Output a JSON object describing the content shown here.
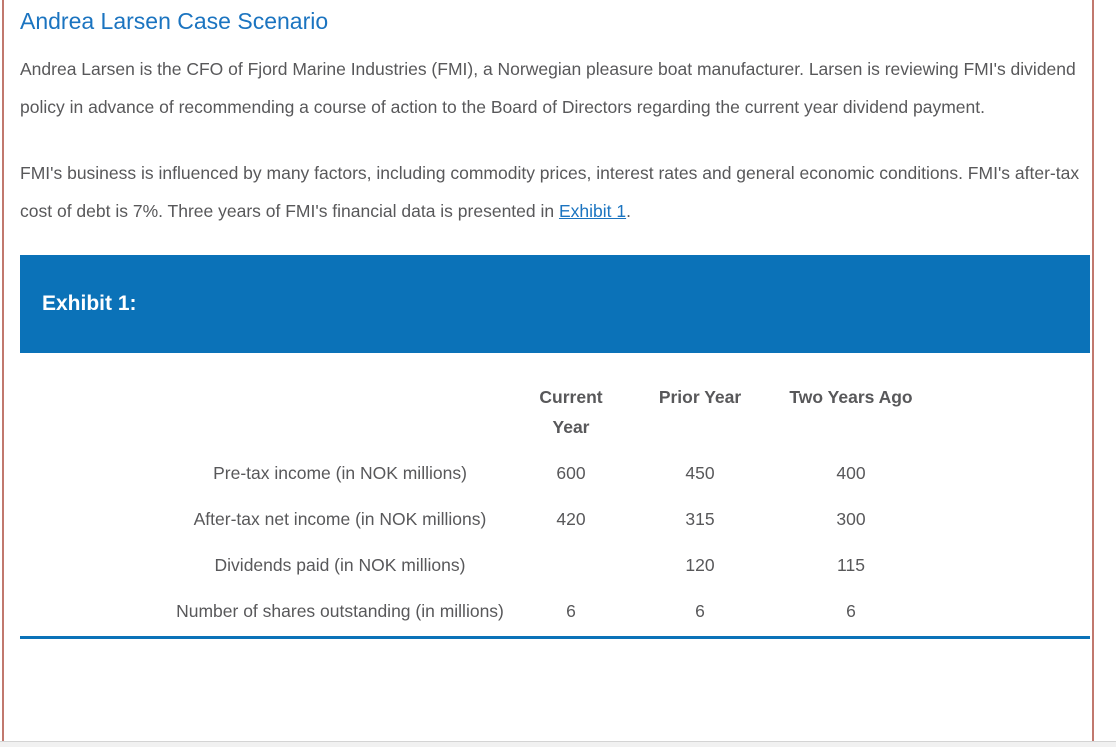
{
  "scenario": {
    "title": "Andrea Larsen Case Scenario",
    "paragraph1": "Andrea Larsen is the CFO of Fjord Marine Industries (FMI), a Norwegian pleasure boat manufacturer. Larsen is reviewing FMI's dividend policy in advance of recommending a course of action to the Board of Directors regarding the current year dividend payment.",
    "paragraph2": {
      "before_link": "FMI's business is influenced by many factors, including commodity prices, interest rates and general economic conditions. FMI's after-tax cost of debt is 7%. Three years of FMI's financial data is presented in ",
      "link_text": "Exhibit 1",
      "after_link": "."
    }
  },
  "exhibit": {
    "banner_title": "Exhibit 1:",
    "table": {
      "column_headers": [
        "Current Year",
        "Prior Year",
        "Two Years Ago"
      ],
      "rows": [
        {
          "label": "Pre-tax income (in NOK millions)",
          "current_year": "600",
          "prior_year": "450",
          "two_years_ago": "400"
        },
        {
          "label": "After-tax net income (in NOK millions)",
          "current_year": "420",
          "prior_year": "315",
          "two_years_ago": "300"
        },
        {
          "label": "Dividends paid (in NOK millions)",
          "current_year": "",
          "prior_year": "120",
          "two_years_ago": "115"
        },
        {
          "label": "Number of shares outstanding (in millions)",
          "current_year": "6",
          "prior_year": "6",
          "two_years_ago": "6"
        }
      ]
    }
  },
  "colors": {
    "banner_blue": "#0b72b8",
    "title_blue": "#1b74c0",
    "body_text_gray": "#58585a",
    "panel_border_red": "#c1786e"
  }
}
